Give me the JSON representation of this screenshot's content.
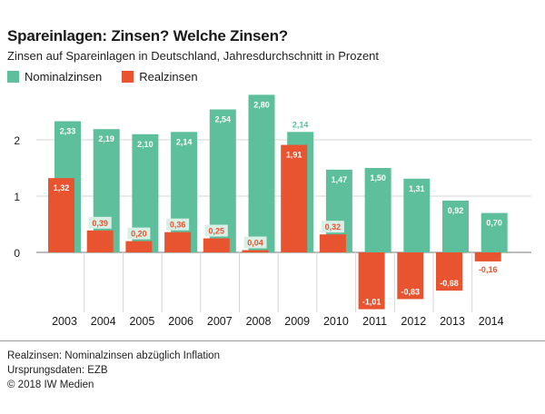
{
  "chart_data": {
    "type": "bar",
    "title": "Spareinlagen: Zinsen? Welche Zinsen?",
    "subtitle": "Zinsen auf Spareinlagen in Deutschland, Jahresdurchschnitt in Prozent",
    "categories": [
      "2003",
      "2004",
      "2005",
      "2006",
      "2007",
      "2008",
      "2009",
      "2010",
      "2011",
      "2012",
      "2013",
      "2014"
    ],
    "series": [
      {
        "name": "Nominalzinsen",
        "color": "#5dbf9c",
        "values": [
          2.33,
          2.19,
          2.1,
          2.14,
          2.54,
          2.8,
          2.14,
          1.47,
          1.5,
          1.31,
          0.92,
          0.7
        ],
        "labels": [
          "2,33",
          "2,19",
          "2,10",
          "2,14",
          "2,54",
          "2,80",
          "2,14",
          "1,47",
          "1,50",
          "1,31",
          "0,92",
          "0,70"
        ]
      },
      {
        "name": "Realzinsen",
        "color": "#e8542f",
        "values": [
          1.32,
          0.39,
          0.2,
          0.36,
          0.25,
          0.04,
          1.91,
          0.32,
          -1.01,
          -0.83,
          -0.68,
          -0.16
        ],
        "labels": [
          "1,32",
          "0,39",
          "0,20",
          "0,36",
          "0,25",
          "0,04",
          "1,91",
          "0,32",
          "-1,01",
          "-0,83",
          "-0,68",
          "-0,16"
        ]
      }
    ],
    "yticks": [
      0,
      1,
      2
    ],
    "ytick_labels": [
      "0",
      "1",
      "2"
    ],
    "ylim": [
      -1.0,
      2.8
    ],
    "grid": true,
    "legend": "top-left"
  },
  "footnotes": [
    "Realzinsen: Nominalzinsen abzüglich Inflation",
    "Ursprungsdaten: EZB",
    "© 2018 IW Medien"
  ]
}
